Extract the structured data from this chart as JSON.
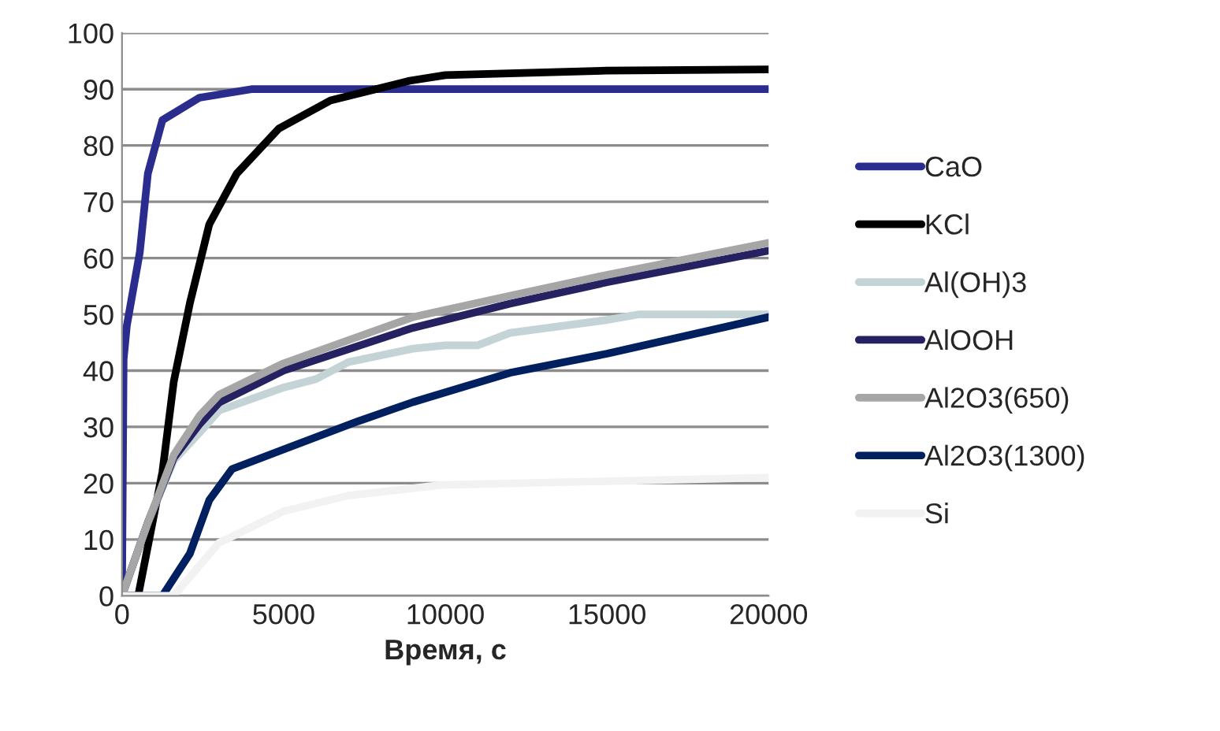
{
  "chart_data": {
    "type": "line",
    "xlabel": "Время, с",
    "xlim": [
      0,
      20000
    ],
    "xticks": [
      0,
      5000,
      10000,
      15000,
      20000
    ],
    "ylim": [
      0,
      100
    ],
    "yticks": [
      0,
      10,
      20,
      30,
      40,
      50,
      60,
      70,
      80,
      90,
      100
    ],
    "grid": "y",
    "legend": "right",
    "marker": "none",
    "line_style": "solid",
    "series": [
      {
        "name": "CaO",
        "color": "#2b2d8e",
        "x": [
          0,
          50,
          150,
          550,
          800,
          1250,
          2400,
          4000,
          6000,
          10000,
          15000,
          20000
        ],
        "values": [
          0,
          42,
          48,
          61,
          75,
          84.5,
          88.5,
          90,
          90,
          90,
          90,
          90
        ]
      },
      {
        "name": "KCl",
        "color": "#000000",
        "x": [
          0,
          500,
          1250,
          1600,
          2100,
          2700,
          3550,
          4850,
          6450,
          8900,
          10000,
          15000,
          20000
        ],
        "values": [
          0,
          0,
          22,
          38,
          52,
          66,
          75,
          83,
          88,
          91.5,
          92.5,
          93.3,
          93.5
        ]
      },
      {
        "name": "Al(OH)3",
        "color": "#c3d3d6",
        "x": [
          0,
          800,
          1600,
          2400,
          3000,
          5000,
          6000,
          7000,
          9000,
          10000,
          11000,
          12000,
          15000,
          16000,
          20000
        ],
        "values": [
          0,
          13,
          24,
          29,
          32.9,
          37,
          38.5,
          41.5,
          43.9,
          44.5,
          44.5,
          46.7,
          49,
          50,
          50
        ]
      },
      {
        "name": "AlOOH",
        "color": "#262262",
        "x": [
          0,
          800,
          1600,
          2400,
          3000,
          5000,
          9000,
          12000,
          15000,
          20000
        ],
        "values": [
          0,
          13,
          24.5,
          30.5,
          34.3,
          40,
          47.6,
          51.9,
          55.7,
          61.3
        ]
      },
      {
        "name": "Al2O3(650)",
        "color": "#a6a6a6",
        "x": [
          0,
          800,
          1600,
          2400,
          3000,
          5000,
          9000,
          12000,
          15000,
          20000
        ],
        "values": [
          0,
          13,
          25,
          32,
          35.7,
          41.3,
          49.5,
          53.3,
          57,
          62.7
        ]
      },
      {
        "name": "Al2O3(1300)",
        "color": "#002060",
        "x": [
          0,
          1250,
          2100,
          2700,
          3400,
          5000,
          7300,
          9000,
          12000,
          15000,
          20000
        ],
        "values": [
          0,
          0,
          7.5,
          17,
          22.5,
          26,
          31,
          34.4,
          39.6,
          43,
          49.5
        ]
      },
      {
        "name": "Si",
        "color": "#f2f2f2",
        "x": [
          0,
          1600,
          3000,
          5000,
          7000,
          9900,
          20000
        ],
        "values": [
          0,
          0,
          9.4,
          15,
          17.8,
          19.7,
          21
        ]
      }
    ]
  }
}
